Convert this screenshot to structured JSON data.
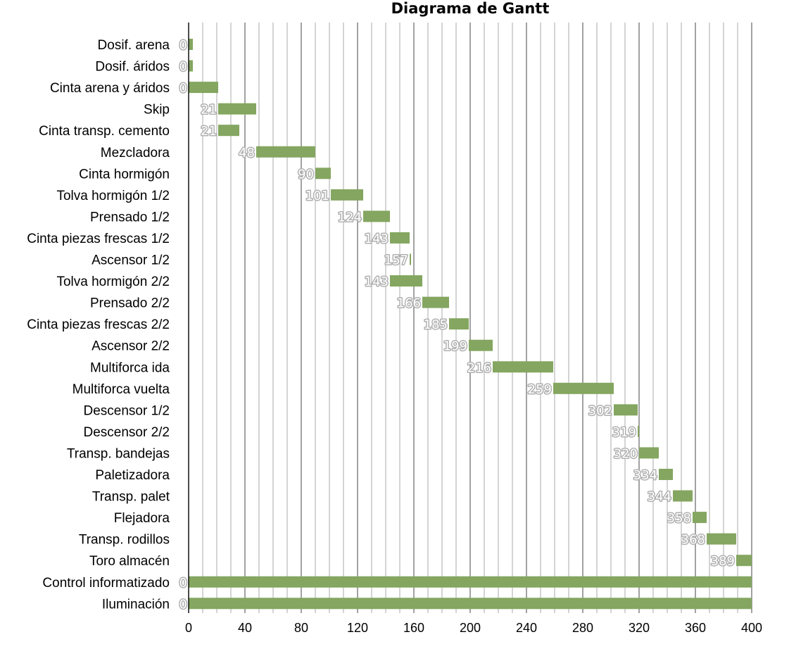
{
  "chart_data": {
    "type": "bar",
    "orientation": "horizontal-gantt",
    "title": "Diagrama de Gantt",
    "xlim": [
      0,
      400
    ],
    "x_ticks": [
      "0",
      "40",
      "80",
      "120",
      "160",
      "200",
      "240",
      "280",
      "320",
      "360",
      "400"
    ],
    "grid": true,
    "bar_color": "#84a660",
    "tasks": [
      {
        "name": "Dosif. arena",
        "start": 0,
        "duration": 3
      },
      {
        "name": "Dosif. áridos",
        "start": 0,
        "duration": 3
      },
      {
        "name": "Cinta arena y áridos",
        "start": 0,
        "duration": 21
      },
      {
        "name": "Skip",
        "start": 21,
        "duration": 27
      },
      {
        "name": "Cinta transp. cemento",
        "start": 21,
        "duration": 15
      },
      {
        "name": "Mezcladora",
        "start": 48,
        "duration": 42
      },
      {
        "name": "Cinta hormigón",
        "start": 90,
        "duration": 11
      },
      {
        "name": "Tolva hormigón 1/2",
        "start": 101,
        "duration": 23
      },
      {
        "name": "Prensado 1/2",
        "start": 124,
        "duration": 19
      },
      {
        "name": "Cinta piezas frescas 1/2",
        "start": 143,
        "duration": 14
      },
      {
        "name": "Ascensor 1/2",
        "start": 157,
        "duration": 1
      },
      {
        "name": "Tolva hormigón 2/2",
        "start": 143,
        "duration": 23
      },
      {
        "name": "Prensado 2/2",
        "start": 166,
        "duration": 19
      },
      {
        "name": "Cinta piezas frescas 2/2",
        "start": 185,
        "duration": 14
      },
      {
        "name": "Ascensor 2/2",
        "start": 199,
        "duration": 17
      },
      {
        "name": "Multiforca ida",
        "start": 216,
        "duration": 43
      },
      {
        "name": "Multiforca vuelta",
        "start": 259,
        "duration": 43
      },
      {
        "name": "Descensor 1/2",
        "start": 302,
        "duration": 17
      },
      {
        "name": "Descensor 2/2",
        "start": 319,
        "duration": 1
      },
      {
        "name": "Transp. bandejas",
        "start": 320,
        "duration": 14
      },
      {
        "name": "Paletizadora",
        "start": 334,
        "duration": 10
      },
      {
        "name": "Transp. palet",
        "start": 344,
        "duration": 14
      },
      {
        "name": "Flejadora",
        "start": 358,
        "duration": 10
      },
      {
        "name": "Transp. rodillos",
        "start": 368,
        "duration": 21
      },
      {
        "name": "Toro almacén",
        "start": 389,
        "duration": 11
      },
      {
        "name": "Control informatizado",
        "start": 0,
        "duration": 400
      },
      {
        "name": "Iluminación",
        "start": 0,
        "duration": 400
      }
    ]
  }
}
